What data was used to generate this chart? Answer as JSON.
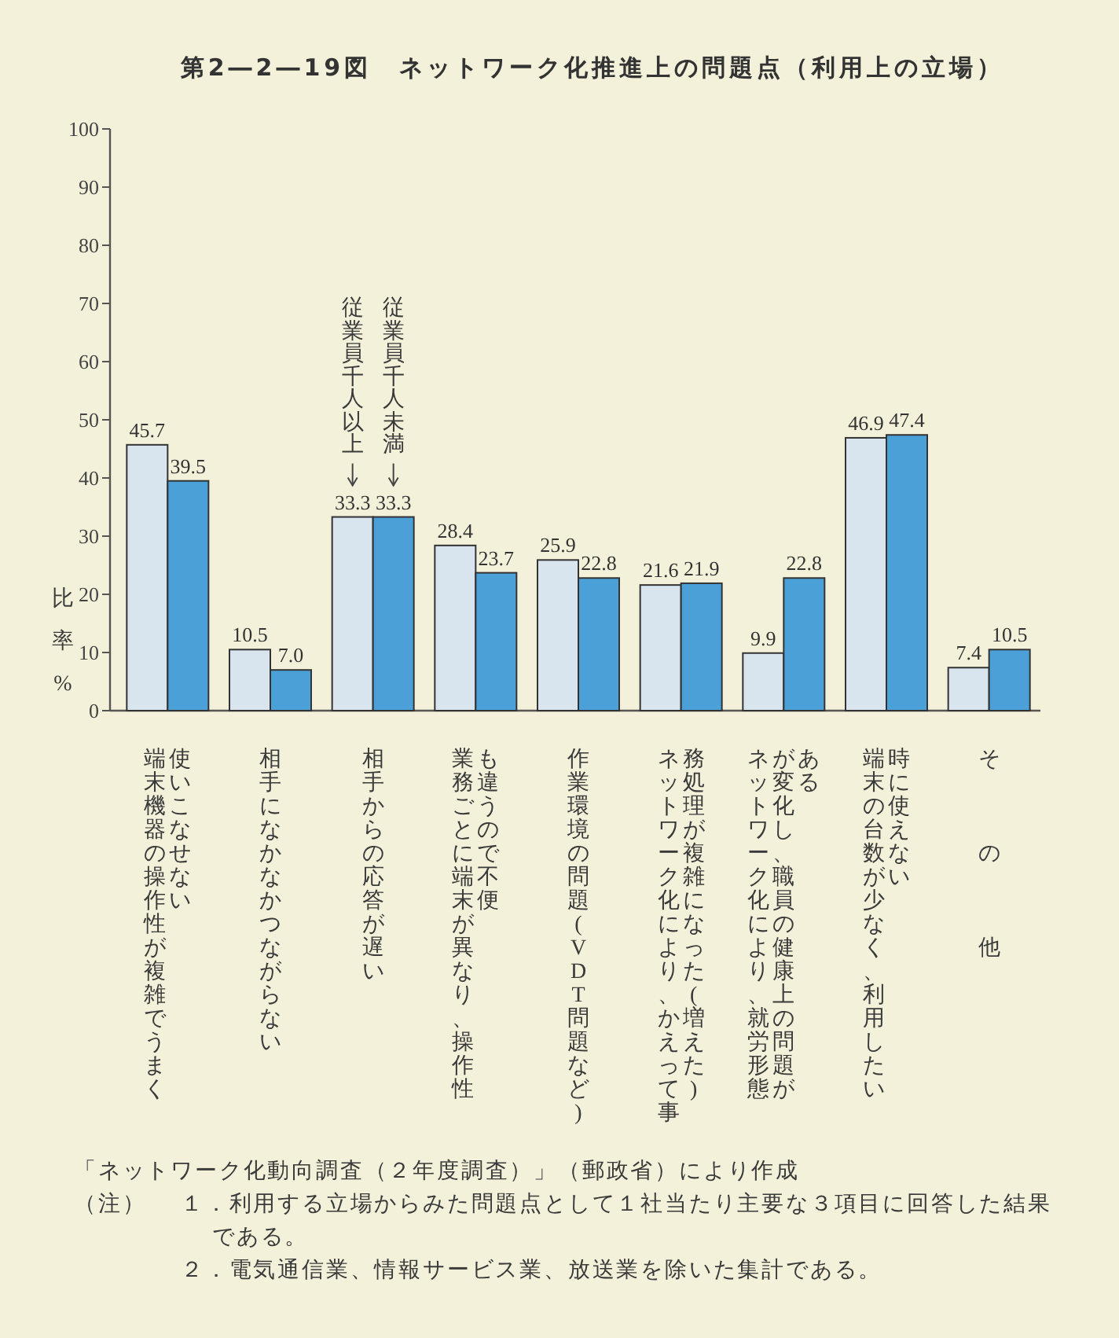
{
  "chart_data": {
    "type": "bar",
    "title": "第2―2―19図　ネットワーク化推進上の問題点（利用上の立場）",
    "ylabel": "比率%",
    "categories": [
      "端末機器の操作性が複雑でうまく使いこなせない",
      "相手になかなかつながらない",
      "相手からの応答が遅い",
      "業務ごとに端末が異なり、操作性も違うので不便",
      "作業環境の問題(VDT問題など)",
      "ネットワーク化により、かえって事務処理が複雑になった(増えた)",
      "ネットワーク化により、就労形態が変化し、職員の健康上の問題がある",
      "端末の台数が少なく、利用したい時に使えない",
      "その他"
    ],
    "series": [
      {
        "name": "従業員千人以上",
        "color": "#d8e4ee",
        "values": [
          45.7,
          10.5,
          33.3,
          28.4,
          25.9,
          21.6,
          9.9,
          46.9,
          7.4
        ],
        "value_labels": [
          "45.7",
          "10.5",
          "33.3",
          "28.4",
          "25.9",
          "21.6",
          "9.9",
          "46.9",
          "7.4"
        ]
      },
      {
        "name": "従業員千人未満",
        "color": "#4ba0d7",
        "values": [
          39.5,
          7.0,
          33.3,
          23.7,
          22.8,
          21.9,
          22.8,
          47.4,
          10.5
        ],
        "value_labels": [
          "39.5",
          "7.0",
          "33.3",
          "23.7",
          "22.8",
          "21.9",
          "22.8",
          "47.4",
          "10.5"
        ]
      }
    ],
    "ylim": [
      0,
      100
    ],
    "yticks": [
      0,
      10,
      20,
      30,
      40,
      50,
      60,
      70,
      80,
      90,
      100
    ],
    "annotations": [
      "「ネットワーク化動向調査（２年度調査）」（郵政省）により作成",
      "（注）",
      "１．利用する立場からみた問題点として１社当たり主要な３項目に回答した結果である。",
      "２．電気通信業、情報サービス業、放送業を除いた集計である。"
    ]
  }
}
